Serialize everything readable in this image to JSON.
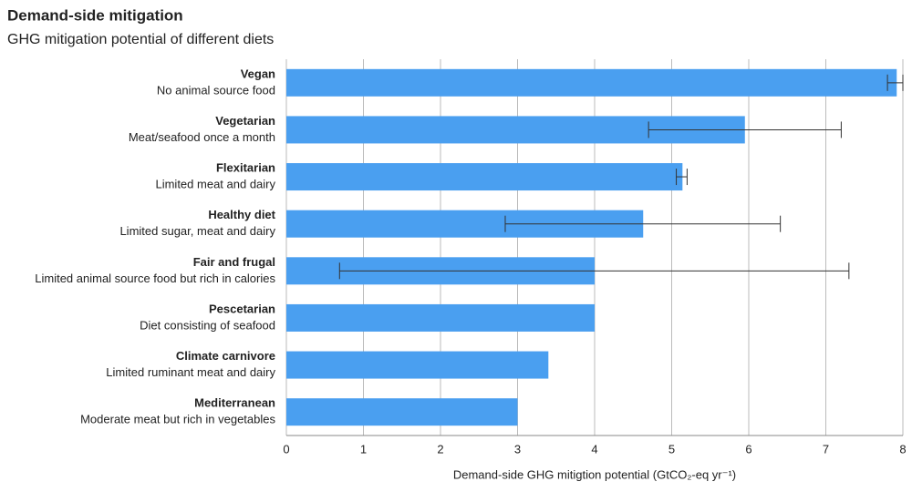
{
  "chart_data": {
    "type": "bar",
    "orientation": "horizontal",
    "title": "Demand-side mitigation",
    "subtitle": "GHG mitigation potential of different diets",
    "x_label": "Demand-side GHG mitigtion potential (GtCO₂-eq yr⁻¹)",
    "categories": [
      "Vegan",
      "Vegetarian",
      "Flexitarian",
      "Healthy diet",
      "Fair and frugal",
      "Pescetarian",
      "Climate carnivore",
      "Mediterranean"
    ],
    "descriptions": [
      "No animal source food",
      "Meat/seafood once a month",
      "Limited meat and dairy",
      "Limited sugar, meat and dairy",
      "Limited animal source food but rich in calories",
      "Diet consisting of seafood",
      "Limited ruminant meat and dairy",
      "Moderate meat but rich in vegetables"
    ],
    "values": [
      7.92,
      5.95,
      5.14,
      4.63,
      4.0,
      4.0,
      3.4,
      3.0
    ],
    "error_low": [
      7.8,
      4.7,
      5.06,
      2.84,
      0.69,
      null,
      null,
      null
    ],
    "error_high": [
      8.0,
      7.2,
      5.2,
      6.41,
      7.3,
      null,
      null,
      null
    ],
    "color": "#4a9ff0",
    "xlim": [
      0,
      8
    ],
    "xticks": [
      0,
      1,
      2,
      3,
      4,
      5,
      6,
      7,
      8
    ],
    "grid": true
  }
}
